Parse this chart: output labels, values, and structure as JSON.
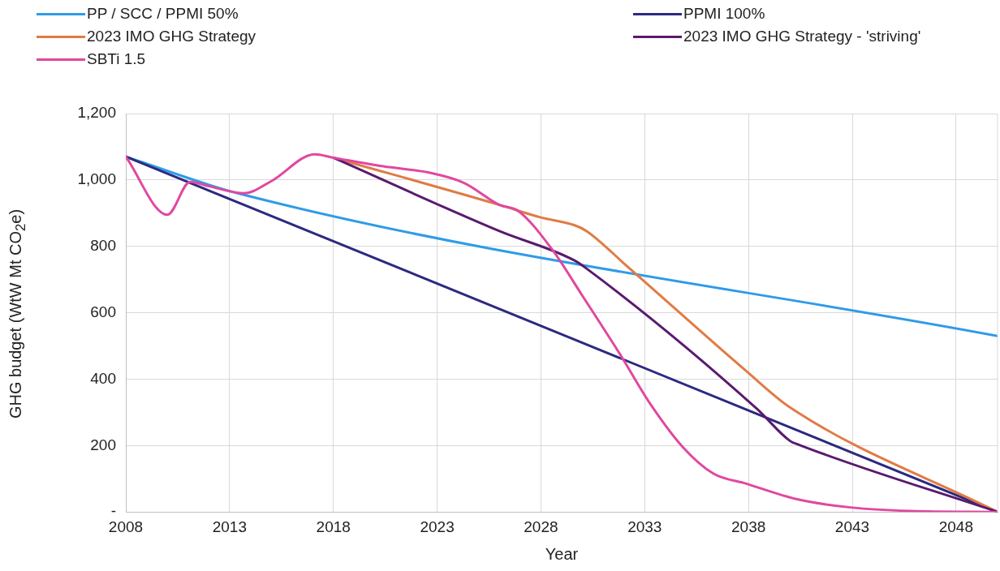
{
  "chart_data": {
    "type": "line",
    "xlabel": "Year",
    "ylabel": "GHG budget (WtW Mt CO$_{2}$e)",
    "xlim": [
      2008,
      2050
    ],
    "xticks": [
      2008,
      2013,
      2018,
      2023,
      2028,
      2033,
      2038,
      2043,
      2048
    ],
    "ylim": [
      0,
      1200
    ],
    "yticks": [
      {
        "value": 0,
        "label": "-"
      },
      200,
      400,
      600,
      800,
      {
        "value": 1000,
        "label": "1,000"
      },
      {
        "value": 1200,
        "label": "1,200"
      }
    ],
    "grid": true,
    "legend": "top",
    "marker": "none",
    "line_style": "solid",
    "series": [
      {
        "name": "PP / SCC / PPMI 50%",
        "color": "#2f9be8",
        "x": [
          2008,
          2013.5,
          2050
        ],
        "values": [
          1070,
          958,
          530
        ]
      },
      {
        "name": "PPMI 100%",
        "color": "#2b2a7f",
        "x": [
          2008,
          2050
        ],
        "values": [
          1070,
          0
        ]
      },
      {
        "name": "2023 IMO GHG Strategy",
        "color": "#e07b45",
        "x": [
          2018,
          2026,
          2028,
          2029.6,
          2030.2,
          2032.1,
          2037.9,
          2040,
          2050
        ],
        "values": [
          1067,
          925,
          887,
          864,
          846,
          743,
          424,
          315,
          0
        ]
      },
      {
        "name": "2023 IMO GHG Strategy - 'striving'",
        "color": "#5a1a6e",
        "x": [
          2018,
          2026,
          2029.6,
          2030.2,
          2038.4,
          2040,
          2040.4,
          2050
        ],
        "values": [
          1067,
          846,
          758,
          733,
          311,
          214,
          203,
          0
        ]
      },
      {
        "name": "SBTi 1.5",
        "color": "#e0489f",
        "x": [
          2008,
          2010,
          2011.1,
          2012,
          2013.7,
          2015,
          2017.1,
          2018,
          2020.4,
          2022.7,
          2024.3,
          2026,
          2026.9,
          2028.5,
          2030,
          2031.9,
          2033.2,
          2034.8,
          2036.3,
          2037.9,
          2040.3,
          2043,
          2045.8,
          2050
        ],
        "values": [
          1070,
          895,
          994,
          981,
          960,
          996,
          1077,
          1067,
          1041,
          1021,
          991,
          925,
          907,
          794,
          651,
          466,
          332,
          198,
          116,
          85,
          39,
          13,
          3,
          0
        ]
      }
    ]
  }
}
